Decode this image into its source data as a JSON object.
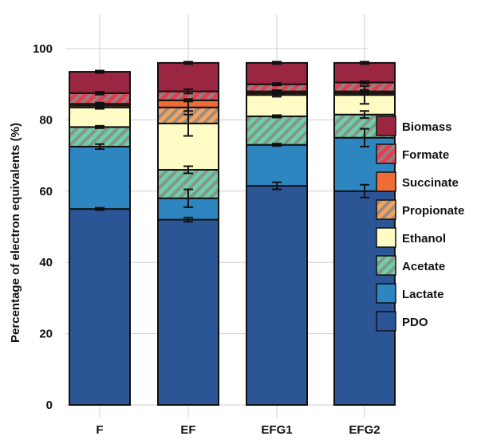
{
  "chart_data": {
    "type": "bar",
    "stacked": true,
    "ylabel": "Percentage of electron equivalents (%)",
    "xlabel": "",
    "ylim": [
      0,
      110
    ],
    "yticks": [
      0,
      20,
      40,
      60,
      80,
      100
    ],
    "grid": true,
    "legend_position": "right",
    "categories": [
      "F",
      "EF",
      "EFG1",
      "EFG2"
    ],
    "series": [
      {
        "name": "PDO",
        "color": "#2c5596",
        "pattern": "none",
        "values": [
          55.0,
          52.0,
          61.5,
          60.0
        ],
        "errors": [
          0.3,
          0.6,
          1.0,
          1.8
        ]
      },
      {
        "name": "Lactate",
        "color": "#2e86c1",
        "pattern": "none",
        "values": [
          17.5,
          6.0,
          11.5,
          15.0
        ],
        "errors": [
          0.7,
          2.5,
          0.3,
          2.5
        ]
      },
      {
        "name": "Acetate",
        "color": "#6fcfa6",
        "pattern": "hatch",
        "values": [
          5.5,
          8.0,
          8.0,
          6.5
        ],
        "errors": [
          0.3,
          1.0,
          0.2,
          1.0
        ]
      },
      {
        "name": "Ethanol",
        "color": "#fffbc4",
        "pattern": "none",
        "values": [
          5.5,
          13.0,
          6.0,
          5.5
        ],
        "errors": [
          0.4,
          3.5,
          0.5,
          2.5
        ]
      },
      {
        "name": "Propionate",
        "color": "#f5a35a",
        "pattern": "hatch",
        "values": [
          0.5,
          4.5,
          0.5,
          0.5
        ],
        "errors": [
          0.2,
          2.0,
          0.2,
          0.2
        ]
      },
      {
        "name": "Succinate",
        "color": "#ef6c35",
        "pattern": "none",
        "values": [
          0.5,
          2.0,
          0.5,
          0.5
        ],
        "errors": [
          0.2,
          0.3,
          0.2,
          0.2
        ]
      },
      {
        "name": "Formate",
        "color": "#e23d50",
        "pattern": "hatch",
        "values": [
          3.0,
          2.5,
          2.0,
          2.5
        ],
        "errors": [
          0.4,
          0.6,
          0.3,
          0.3
        ]
      },
      {
        "name": "Biomass",
        "color": "#9b2642",
        "pattern": "none",
        "values": [
          6.0,
          8.0,
          6.0,
          5.5
        ],
        "errors": [
          0.3,
          0.3,
          0.2,
          0.3
        ]
      }
    ],
    "legend_order": [
      "Biomass",
      "Formate",
      "Succinate",
      "Propionate",
      "Ethanol",
      "Acetate",
      "Lactate",
      "PDO"
    ]
  }
}
